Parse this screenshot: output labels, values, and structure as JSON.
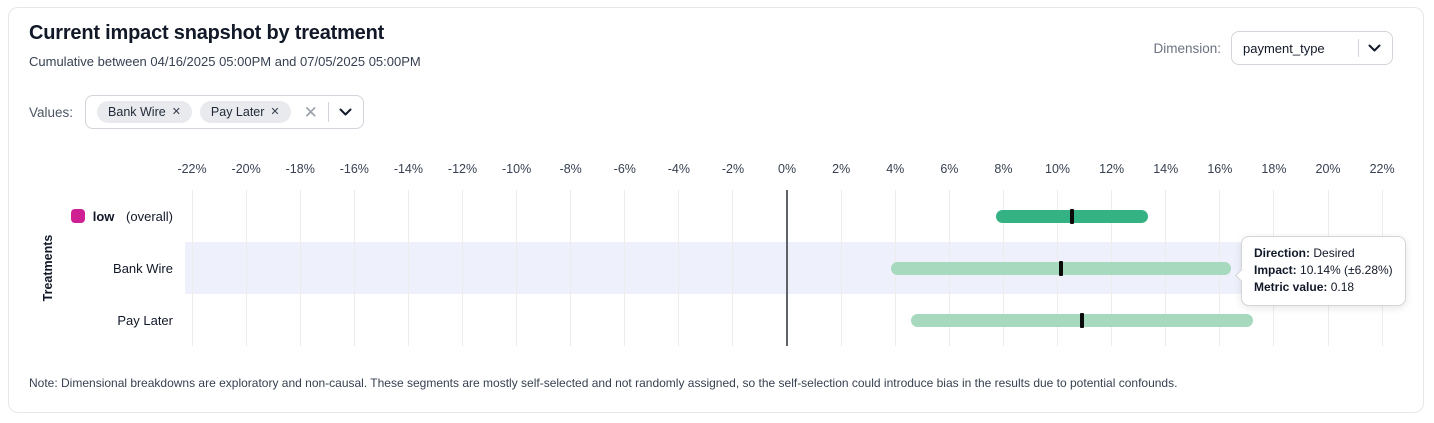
{
  "header": {
    "title": "Current impact snapshot by treatment",
    "subtitle": "Cumulative between 04/16/2025 05:00PM and 07/05/2025 05:00PM",
    "dimension": {
      "label": "Dimension:",
      "value": "payment_type"
    }
  },
  "filters": {
    "label": "Values:",
    "chips": [
      "Bank Wire",
      "Pay Later"
    ],
    "chip_remove_icon": "✕",
    "clear_icon": "✕"
  },
  "chart_data": {
    "type": "bar",
    "subtype": "horizontal_interval_confidence",
    "orientation": "horizontal",
    "ylabel": "Treatments",
    "grid": true,
    "zero_line": true,
    "x_axis": {
      "unit": "%",
      "min": -22.26,
      "max": 22.18,
      "tick_step": 2,
      "ticks": [
        -22,
        -20,
        -18,
        -16,
        -14,
        -12,
        -10,
        -8,
        -6,
        -4,
        -2,
        0,
        2,
        4,
        6,
        8,
        10,
        12,
        14,
        16,
        18,
        20,
        22
      ]
    },
    "rows": [
      {
        "label": "low",
        "label_note": "(overall)",
        "legend_color": "#cf2093",
        "bar_color": "#34b284",
        "impact_pct": 10.54,
        "ci_low_pct": 7.73,
        "ci_high_pct": 13.35,
        "highlighted": false
      },
      {
        "label": "Bank Wire",
        "label_note": "",
        "legend_color": "",
        "bar_color": "#a6d9bd",
        "impact_pct": 10.14,
        "ci_low_pct": 3.86,
        "ci_high_pct": 16.42,
        "highlighted": true
      },
      {
        "label": "Pay Later",
        "label_note": "",
        "legend_color": "",
        "bar_color": "#a6d9bd",
        "impact_pct": 10.9,
        "ci_low_pct": 4.58,
        "ci_high_pct": 17.22,
        "highlighted": false
      }
    ]
  },
  "tooltip": {
    "lines": [
      {
        "label": "Direction:",
        "value": "Desired"
      },
      {
        "label": "Impact:",
        "value": "10.14% (±6.28%)"
      },
      {
        "label": "Metric value:",
        "value": "0.18"
      }
    ]
  },
  "note": "Note: Dimensional breakdowns are exploratory and non-causal. These segments are mostly self-selected and not randomly assigned, so the self-selection could introduce bias in the results due to potential confounds.",
  "colors": {
    "highlight_band": "#eef0fb",
    "gridline": "#ececec",
    "zero_line": "#5f6368",
    "point_tick": "#0b0b0b"
  }
}
